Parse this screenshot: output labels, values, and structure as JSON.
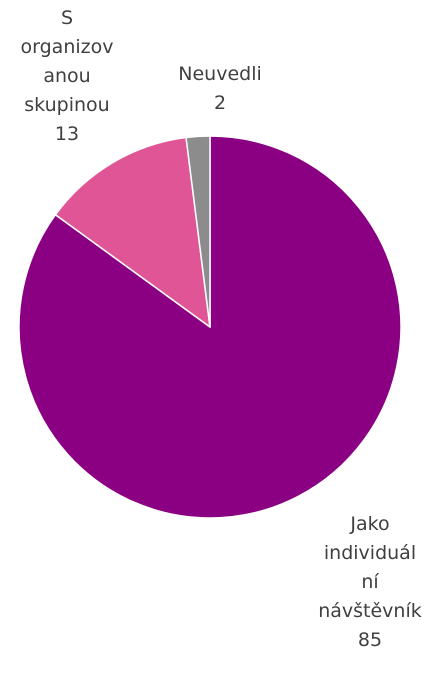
{
  "chart_data": {
    "type": "pie",
    "slices": [
      {
        "label_lines": [
          "Jako",
          "individuál",
          "ní",
          "návštěvník"
        ],
        "value": 85,
        "value_text": "85",
        "color": "#8B0083"
      },
      {
        "label_lines": [
          "S",
          "organizov",
          "anou",
          "skupinou"
        ],
        "value": 13,
        "value_text": "13",
        "color": "#E05596"
      },
      {
        "label_lines": [
          "Neuvedli"
        ],
        "value": 2,
        "value_text": "2",
        "color": "#8C8C8C"
      }
    ],
    "start": "12 o'clock",
    "direction": "clockwise",
    "legend": "none",
    "title": ""
  }
}
